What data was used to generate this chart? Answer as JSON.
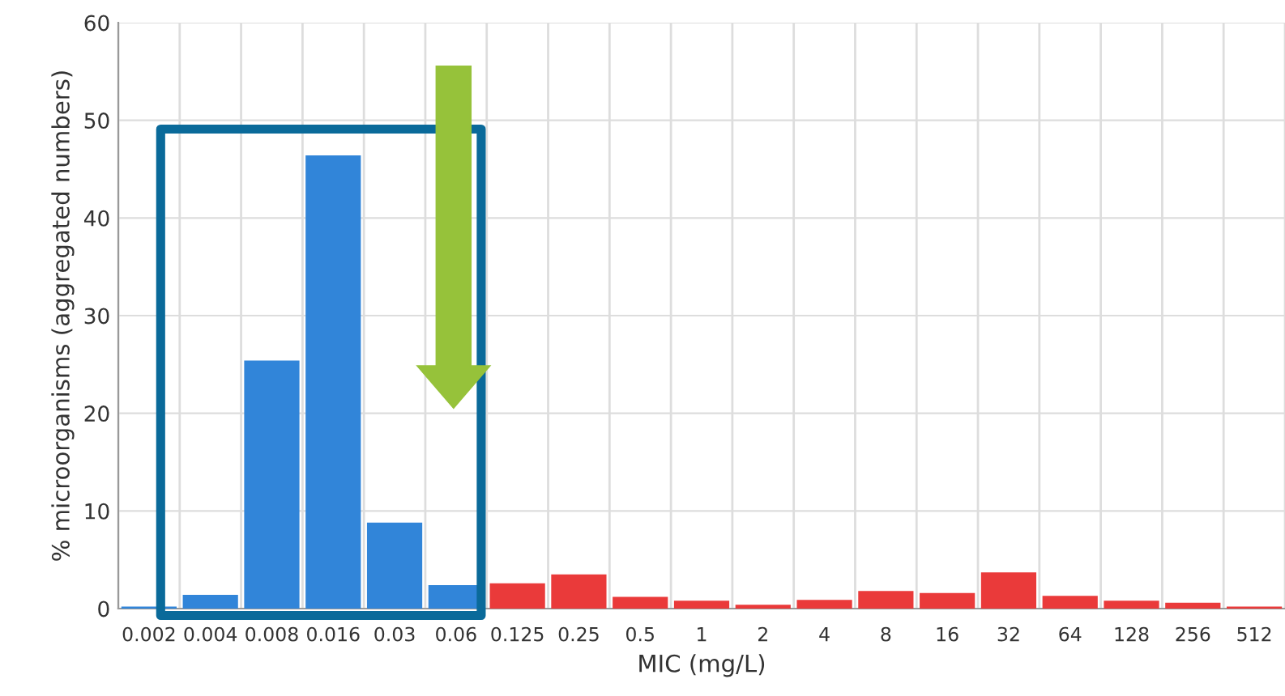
{
  "chart_data": {
    "type": "bar",
    "xlabel": "MIC (mg/L)",
    "ylabel": "% microorganisms (aggregated numbers)",
    "categories": [
      "0.002",
      "0.004",
      "0.008",
      "0.016",
      "0.03",
      "0.06",
      "0.125",
      "0.25",
      "0.5",
      "1",
      "2",
      "4",
      "8",
      "16",
      "32",
      "64",
      "128",
      "256",
      "512"
    ],
    "values": [
      0.2,
      1.4,
      25.4,
      46.4,
      8.8,
      2.4,
      2.6,
      3.5,
      1.2,
      0.8,
      0.4,
      0.9,
      1.8,
      1.6,
      3.7,
      1.3,
      0.8,
      0.6,
      0.2
    ],
    "colors": [
      "#3185d9",
      "#3185d9",
      "#3185d9",
      "#3185d9",
      "#3185d9",
      "#3185d9",
      "#ea3a3a",
      "#ea3a3a",
      "#ea3a3a",
      "#ea3a3a",
      "#ea3a3a",
      "#ea3a3a",
      "#ea3a3a",
      "#ea3a3a",
      "#ea3a3a",
      "#ea3a3a",
      "#ea3a3a",
      "#ea3a3a",
      "#ea3a3a"
    ],
    "ylim": [
      0,
      60
    ],
    "yticks": [
      0,
      10,
      20,
      30,
      40,
      50,
      60
    ],
    "grid": true
  }
}
